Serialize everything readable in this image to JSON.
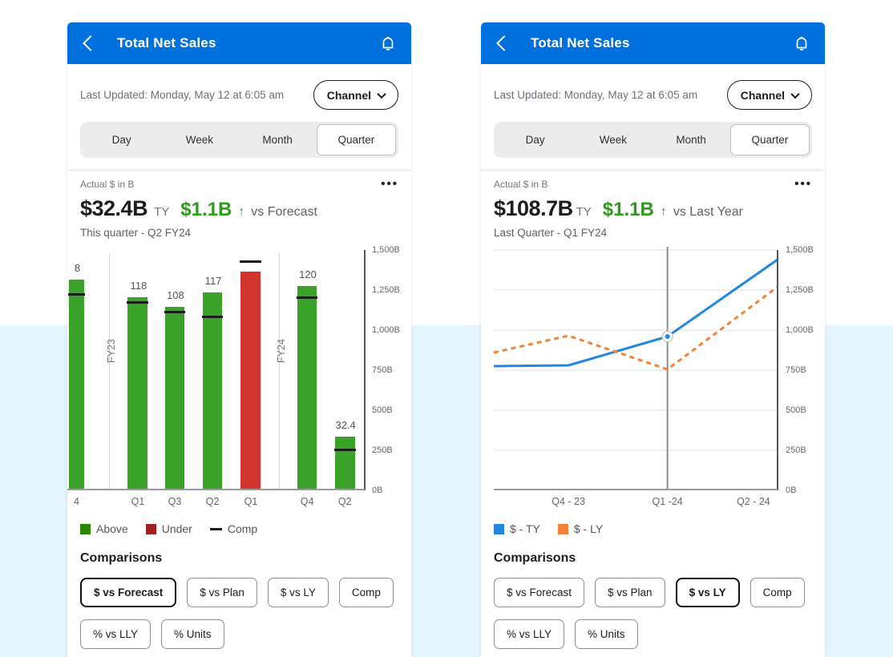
{
  "colors": {
    "header_blue": "#0071dc",
    "delta_green": "#2e9b1e",
    "bar_above_green": "#3aa228",
    "bar_under_red": "#d0342c",
    "legend_above_green": "#2a8703",
    "legend_under_red": "#a32020",
    "comp_black": "#1d1d1d",
    "line_ty_blue": "#2287df",
    "line_ly_orange": "#f58234",
    "background_band": "#e4f5fd"
  },
  "panels": [
    {
      "header": {
        "title": "Total Net Sales",
        "back_icon": "chevron-left",
        "bell_icon": "bell"
      },
      "last_updated": "Last Updated: Monday, May 12 at 6:05 am",
      "channel_button": "Channel",
      "tabs": [
        "Day",
        "Week",
        "Month",
        "Quarter"
      ],
      "active_tab": "Quarter",
      "kpi": {
        "unit_label": "Actual $ in B",
        "menu_dots": "•••",
        "value": "$32.4B",
        "value_suffix": "TY",
        "delta": "$1.1B",
        "delta_arrow": "↑",
        "delta_vs": "vs Forecast",
        "period": "This quarter - Q2 FY24"
      },
      "comparisons": {
        "title": "Comparisons",
        "buttons": [
          "$ vs Forecast",
          "$ vs Plan",
          "$ vs LY",
          "Comp",
          "% vs LLY",
          "% Units"
        ],
        "active": "$ vs Forecast"
      }
    },
    {
      "header": {
        "title": "Total Net Sales",
        "back_icon": "chevron-left",
        "bell_icon": "bell"
      },
      "last_updated": "Last Updated: Monday, May 12 at 6:05 am",
      "channel_button": "Channel",
      "tabs": [
        "Day",
        "Week",
        "Month",
        "Quarter"
      ],
      "active_tab": "Quarter",
      "kpi": {
        "unit_label": "Actual $ in B",
        "menu_dots": "•••",
        "value": "$108.7B",
        "value_suffix": "TY",
        "delta": "$1.1B",
        "delta_arrow": "↑",
        "delta_vs": "vs Last Year",
        "period": "Last Quarter - Q1 FY24"
      },
      "comparisons": {
        "title": "Comparisons",
        "buttons": [
          "$ vs Forecast",
          "$ vs Plan",
          "$ vs LY",
          "Comp",
          "% vs LLY",
          "% Units"
        ],
        "active": "$ vs LY"
      }
    }
  ],
  "chart_data": [
    {
      "type": "bar",
      "title": "Total Net Sales by Quarter ($ in B)",
      "ylim": [
        0,
        1500
      ],
      "grid": false,
      "y_ticks": [
        {
          "label": "1,500B",
          "value": 1500
        },
        {
          "label": "1,250B",
          "value": 1250
        },
        {
          "label": "1,000B",
          "value": 1000
        },
        {
          "label": "750B",
          "value": 750
        },
        {
          "label": "500B",
          "value": 500
        },
        {
          "label": "250B",
          "value": 250
        },
        {
          "label": "0B",
          "value": 0
        }
      ],
      "bars": [
        {
          "category": "4",
          "label": "8",
          "value": 1315,
          "comp": 1215,
          "status": "above",
          "x_pct": 0.5,
          "w_pct": 5.2,
          "clipped": true
        },
        {
          "category": "Q1",
          "label": "118",
          "value": 1205,
          "comp": 1165,
          "status": "above",
          "x_pct": 20.35,
          "w_pct": 6.7
        },
        {
          "category": "Q3",
          "label": "108",
          "value": 1145,
          "comp": 1105,
          "status": "above",
          "x_pct": 32.75,
          "w_pct": 6.7
        },
        {
          "category": "Q2",
          "label": "117",
          "value": 1235,
          "comp": 1075,
          "status": "above",
          "x_pct": 45.45,
          "w_pct": 6.7
        },
        {
          "category": "Q1",
          "label": "",
          "value": 1365,
          "comp": 1420,
          "status": "under",
          "x_pct": 58.35,
          "w_pct": 6.7
        },
        {
          "category": "Q4",
          "label": "120",
          "value": 1275,
          "comp": 1195,
          "status": "above",
          "x_pct": 77.25,
          "w_pct": 6.7
        },
        {
          "category": "Q2",
          "label": "32.4",
          "value": 335,
          "comp": 245,
          "status": "above",
          "x_pct": 89.95,
          "w_pct": 6.7
        }
      ],
      "dividers": [
        {
          "label": "FY23",
          "x_pct": 14.0
        },
        {
          "label": "FY24",
          "x_pct": 71.2
        }
      ],
      "legend": [
        {
          "label": "Above",
          "color": "#2a8703",
          "type": "square"
        },
        {
          "label": "Under",
          "color": "#a32020",
          "type": "square"
        },
        {
          "label": "Comp",
          "color": "#1d1d1d",
          "type": "dash"
        }
      ]
    },
    {
      "type": "line",
      "title": "Total Net Sales Trend ($ in B)",
      "ylim": [
        0,
        1500
      ],
      "grid": true,
      "y_ticks": [
        {
          "label": "1,500B",
          "value": 1500
        },
        {
          "label": "1,250B",
          "value": 1250
        },
        {
          "label": "1,000B",
          "value": 1000
        },
        {
          "label": "750B",
          "value": 750
        },
        {
          "label": "500B",
          "value": 500
        },
        {
          "label": "250B",
          "value": 250
        },
        {
          "label": "0B",
          "value": 0
        }
      ],
      "x_tick_labels": [
        {
          "text": "Q4 - 23",
          "x_pct": 26.3
        },
        {
          "text": "Q1 -24",
          "x_pct": 61.2
        },
        {
          "text": "Q2 - 24",
          "x_pct": 91.5
        }
      ],
      "series": [
        {
          "name": "$ - TY",
          "color": "#2287df",
          "style": "solid",
          "points": [
            {
              "x_pct": 0,
              "value": 775
            },
            {
              "x_pct": 26.3,
              "value": 780
            },
            {
              "x_pct": 61.2,
              "value": 960
            },
            {
              "x_pct": 100,
              "value": 1440
            }
          ]
        },
        {
          "name": "$ - LY",
          "color": "#f58234",
          "style": "dashed",
          "points": [
            {
              "x_pct": 0,
              "value": 860
            },
            {
              "x_pct": 26.3,
              "value": 965
            },
            {
              "x_pct": 61.2,
              "value": 755
            },
            {
              "x_pct": 100,
              "value": 1270
            }
          ]
        }
      ],
      "marker": {
        "series": "$ - TY",
        "x_pct": 61.2,
        "value": 960
      },
      "vline_x_pct": 61.2,
      "legend": [
        {
          "label": "$ - TY",
          "color": "#2287df",
          "type": "square"
        },
        {
          "label": "$ - LY",
          "color": "#f58234",
          "type": "square"
        }
      ]
    }
  ]
}
